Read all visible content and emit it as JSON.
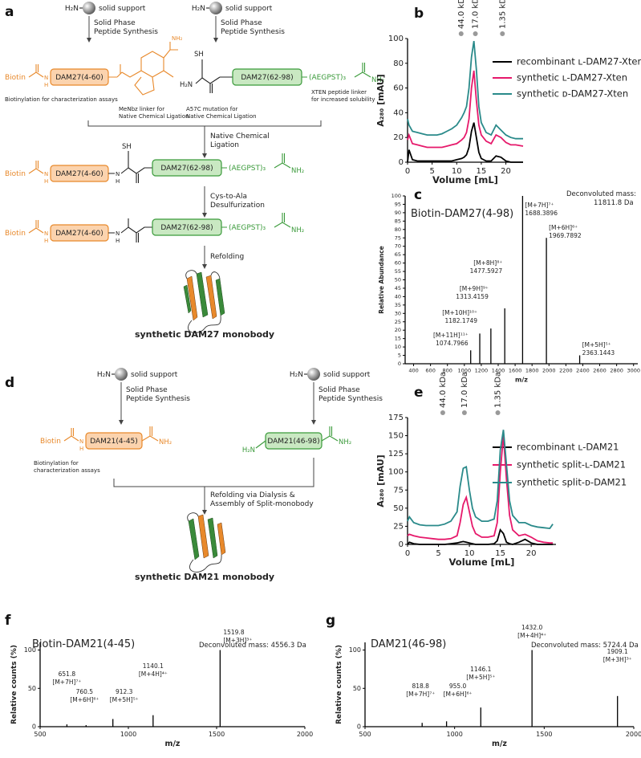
{
  "panels": {
    "a": {
      "label": "a",
      "start_left": {
        "amine": "H₂N",
        "support": "solid support",
        "step": [
          "Solid Phase",
          "Peptide Synthesis"
        ]
      },
      "start_right": {
        "amine": "H₂N",
        "support": "solid support",
        "step": [
          "Solid Phase",
          "Peptide Synthesis"
        ]
      },
      "fragment_left": {
        "tag": "Biotin",
        "nh": "N",
        "h": "H",
        "domain": "DAM27(4-60)",
        "linker_amide": "NH₂",
        "note": "Biotinylation for characterization assays",
        "linker_note": [
          "MeNbz linker for",
          "Native Chemical Ligation"
        ]
      },
      "fragment_right": {
        "thiol": "SH",
        "amine": "H₂N",
        "domain": "DAM27(62-98)",
        "linker": "(AEGPST)₃",
        "amide": "NH₂",
        "mutation_note": [
          "A57C mutation for",
          "Native Chemical Ligation"
        ],
        "linker_note": [
          "XTEN peptide linker",
          "for increased solubility"
        ]
      },
      "ligation": [
        "Native Chemical",
        "Ligation"
      ],
      "ligated": {
        "tag": "Biotin",
        "nh_1": "N",
        "h_1": "H",
        "domain_1": "DAM27(4-60)",
        "nh_2": "N",
        "h_2": "H",
        "thiol": "SH",
        "domain_2": "DAM27(62-98)",
        "linker": "(AEGPST)₃",
        "amide": "NH₂"
      },
      "desulfurization": [
        "Cys-to-Ala",
        "Desulfurization"
      ],
      "final": {
        "tag": "Biotin",
        "nh_1": "N",
        "h_1": "H",
        "domain_1": "DAM27(4-60)",
        "nh_2": "N",
        "h_2": "H",
        "domain_2": "DAM27(62-98)",
        "linker": "(AEGPST)₃",
        "amide": "NH₂"
      },
      "refolding": "Refolding",
      "caption": "synthetic DAM27 monobody"
    },
    "d": {
      "label": "d",
      "start_left": {
        "amine": "H₂N",
        "support": "solid support",
        "step": [
          "Solid Phase",
          "Peptide Synthesis"
        ]
      },
      "start_right": {
        "amine": "H₂N",
        "support": "solid support",
        "step": [
          "Solid Phase",
          "Peptide Synthesis"
        ]
      },
      "fragment_left": {
        "tag": "Biotin",
        "nh": "N",
        "h": "H",
        "domain": "DAM21(4-45)",
        "amide": "NH₂",
        "note": [
          "Biotinylation for",
          "characterization assays"
        ]
      },
      "fragment_right": {
        "amine": "H₂N",
        "domain": "DAM21(46-98)",
        "amide": "NH₂"
      },
      "refolding": [
        "Refolding via Dialysis &",
        "Assembly of Split-monobody"
      ],
      "caption": "synthetic DAM21 monobody"
    }
  },
  "chart_data": [
    {
      "type": "line",
      "panel": "b",
      "x_label": "Volume [mL]",
      "y_label": "A₂₈₀ [mAU]",
      "xlim": [
        0,
        23.5
      ],
      "xticks": [
        0,
        5,
        10,
        15,
        20
      ],
      "ylim": [
        0,
        100
      ],
      "yticks": [
        0,
        20,
        40,
        60,
        80,
        100
      ],
      "markers": [
        {
          "label": "44.0 kDa",
          "x": 10.9
        },
        {
          "label": "17.0 kDa",
          "x": 13.8
        },
        {
          "label": "1.35 kDa",
          "x": 19.3
        }
      ],
      "legend": "upper right",
      "x": [
        0,
        0.3,
        1,
        2,
        3,
        4,
        5,
        6,
        7,
        8,
        9,
        10,
        11,
        11.5,
        12,
        12.5,
        13,
        13.5,
        14,
        14.5,
        15,
        16,
        17,
        18,
        19,
        20,
        21,
        22,
        23.5
      ],
      "series": [
        {
          "name": "recombinant ʟ-DAM27-Xten",
          "color": "#000000",
          "values": [
            0,
            10,
            2,
            1,
            1,
            1,
            1,
            1,
            1,
            1,
            1,
            2,
            3,
            4,
            6,
            12,
            25,
            32,
            20,
            8,
            3,
            1,
            1,
            5,
            4,
            1,
            0,
            0,
            0
          ]
        },
        {
          "name": "synthetic ʟ-DAM27-Xten",
          "color": "#e6196b",
          "values": [
            18,
            22,
            15,
            14,
            13,
            12,
            12,
            12,
            12,
            13,
            14,
            15,
            18,
            20,
            24,
            35,
            60,
            74,
            50,
            30,
            22,
            17,
            15,
            22,
            20,
            16,
            14,
            14,
            13
          ]
        },
        {
          "name": "synthetic ᴅ-DAM27-Xten",
          "color": "#2a8a8a",
          "values": [
            35,
            30,
            25,
            24,
            23,
            22,
            22,
            22,
            23,
            25,
            27,
            30,
            36,
            40,
            45,
            60,
            85,
            98,
            75,
            45,
            32,
            24,
            22,
            30,
            26,
            22,
            20,
            19,
            19
          ]
        }
      ]
    },
    {
      "type": "bar",
      "panel": "c",
      "title": "Biotin-DAM27(4-98)",
      "note": [
        "Deconvoluted mass:",
        "11811.8 Da"
      ],
      "x_label": "m/z",
      "y_label": "Relative Abundance",
      "color": "#000000",
      "xlim": [
        300,
        3050
      ],
      "xticks": [
        400,
        600,
        800,
        1000,
        1200,
        1400,
        1600,
        1800,
        2000,
        2200,
        2400,
        2600,
        2800,
        3000
      ],
      "ylim": [
        0,
        100
      ],
      "yticks": [
        0,
        5,
        10,
        15,
        20,
        25,
        30,
        35,
        40,
        45,
        50,
        55,
        60,
        65,
        70,
        75,
        80,
        85,
        90,
        95,
        100
      ],
      "x": [
        1074.7966,
        1182.1749,
        1313.4159,
        1477.5927,
        1688.3896,
        1969.7892,
        2363.1443
      ],
      "values": [
        8,
        18,
        21,
        33,
        100,
        75,
        5
      ],
      "ions": [
        "[M+11H]¹¹⁺",
        "[M+10H]¹⁰⁺",
        "[M+9H]⁹⁺",
        "[M+8H]⁸⁺",
        "[M+7H]⁷⁺",
        "[M+6H]⁶⁺",
        "[M+5H]⁵⁺"
      ]
    },
    {
      "type": "line",
      "panel": "e",
      "x_label": "Volume [mL]",
      "y_label": "A₂₈₀ [mAU]",
      "xlim": [
        0,
        24
      ],
      "xticks": [
        0,
        5,
        10,
        15,
        20
      ],
      "ylim": [
        0,
        175
      ],
      "yticks": [
        0,
        25,
        50,
        75,
        100,
        125,
        150,
        175
      ],
      "markers": [
        {
          "label": "44.0 kDa",
          "x": 5.7
        },
        {
          "label": "17.0 kDa",
          "x": 9.2
        },
        {
          "label": "1.35 kDa",
          "x": 14.6
        }
      ],
      "legend": "upper right",
      "x": [
        0,
        0.3,
        1,
        2,
        3,
        4,
        5,
        6,
        7,
        8,
        8.5,
        9,
        9.5,
        10,
        10.5,
        11,
        12,
        13,
        14,
        14.5,
        15,
        15.5,
        16,
        16.5,
        17,
        18,
        19,
        20,
        21,
        22,
        23,
        23.5
      ],
      "series": [
        {
          "name": "recombinant ʟ-DAM21",
          "color": "#000000",
          "values": [
            0,
            3,
            1,
            0,
            0,
            0,
            0,
            0,
            1,
            2,
            3,
            4,
            3,
            2,
            1,
            0,
            0,
            0,
            1,
            5,
            20,
            15,
            3,
            1,
            0,
            3,
            7,
            2,
            0,
            0,
            0,
            0
          ]
        },
        {
          "name": "synthetic split-ʟ-DAM21",
          "color": "#e6196b",
          "values": [
            12,
            14,
            12,
            10,
            9,
            8,
            7,
            7,
            8,
            12,
            30,
            55,
            65,
            45,
            25,
            15,
            10,
            10,
            12,
            30,
            100,
            150,
            90,
            40,
            20,
            12,
            14,
            10,
            5,
            3,
            2,
            2
          ]
        },
        {
          "name": "synthetic split-ᴅ-DAM21",
          "color": "#2a8a8a",
          "values": [
            32,
            38,
            30,
            27,
            26,
            26,
            26,
            28,
            32,
            45,
            80,
            105,
            107,
            75,
            50,
            38,
            32,
            32,
            35,
            60,
            130,
            158,
            110,
            60,
            40,
            30,
            30,
            26,
            24,
            23,
            22,
            28
          ]
        }
      ]
    },
    {
      "type": "bar",
      "panel": "f",
      "title": "Biotin-DAM21(4-45)",
      "note": "Deconvoluted mass: 4556.3 Da",
      "x_label": "m/z",
      "y_label": "Relative counts (%)",
      "color": "#000000",
      "xlim": [
        500,
        2000
      ],
      "xticks": [
        500,
        1000,
        1500,
        2000
      ],
      "ylim": [
        0,
        110
      ],
      "yticks": [
        0,
        50,
        100
      ],
      "x": [
        651.8,
        760.5,
        912.3,
        1140.1,
        1519.8
      ],
      "x_labels": [
        "651.8",
        "760.5",
        "912.3",
        "1140.1",
        "1519.8"
      ],
      "values": [
        3,
        2,
        10,
        15,
        100
      ],
      "ions": [
        "[M+7H]⁷⁺",
        "[M+6H]⁶⁺",
        "[M+5H]⁵⁺",
        "[M+4H]⁴⁺",
        "[M+3H]³⁺"
      ]
    },
    {
      "type": "bar",
      "panel": "g",
      "title": "DAM21(46-98)",
      "note": "Deconvoluted mass: 5724.4 Da",
      "x_label": "m/z",
      "y_label": "Relative counts (%)",
      "color": "#000000",
      "xlim": [
        500,
        2000
      ],
      "xticks": [
        500,
        1000,
        1500,
        2000
      ],
      "ylim": [
        0,
        110
      ],
      "yticks": [
        0,
        50,
        100
      ],
      "x": [
        818.8,
        955.0,
        1146.1,
        1432.0,
        1909.1
      ],
      "x_labels": [
        "818.8",
        "955.0",
        "1146.1",
        "1432.0",
        "1909.1"
      ],
      "values": [
        5,
        7,
        25,
        100,
        40
      ],
      "ions": [
        "[M+7H]⁷⁺",
        "[M+6H]⁶⁺",
        "[M+5H]⁵⁺",
        "[M+4H]⁴⁺",
        "[M+3H]³⁺"
      ]
    }
  ]
}
